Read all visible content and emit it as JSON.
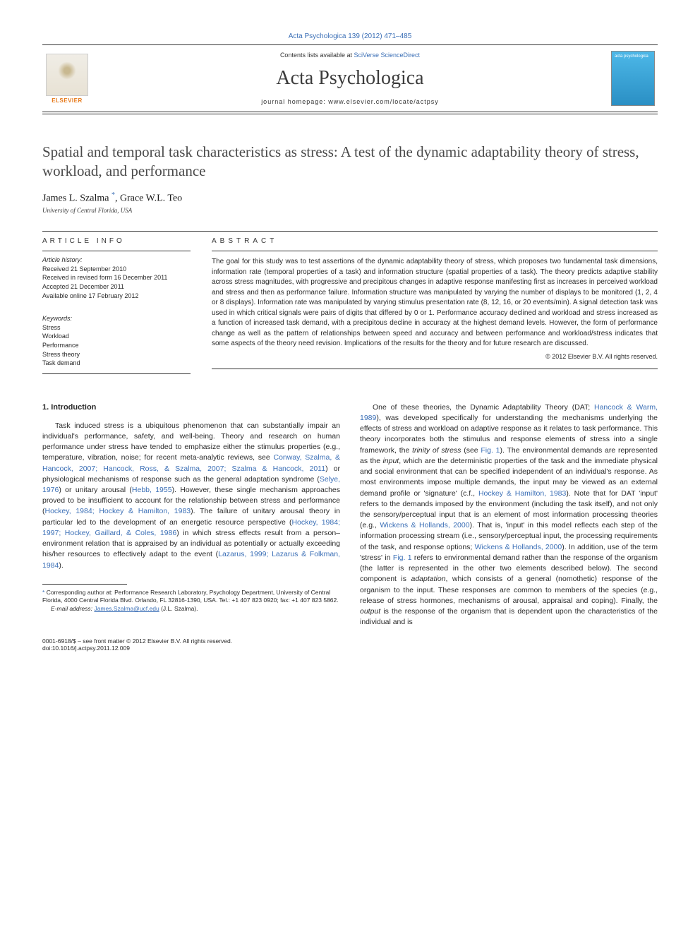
{
  "colors": {
    "link": "#3b6fb6",
    "text": "#2a2a2a",
    "title_gray": "#494949",
    "elsevier_orange": "#e67817",
    "cover_bg_top": "#4db8e8",
    "cover_bg_bottom": "#2a8fc4",
    "rule": "#333333"
  },
  "typography": {
    "body_font": "Arial, sans-serif",
    "serif_font": "Times New Roman, serif",
    "article_title_size_pt": 21,
    "journal_title_size_pt": 28,
    "body_size_pt": 10.5,
    "abstract_size_pt": 10,
    "info_size_pt": 9,
    "footnote_size_pt": 8.5
  },
  "header": {
    "journal_ref": "Acta Psychologica 139 (2012) 471–485",
    "contents_prefix": "Contents lists available at ",
    "contents_link": "SciVerse ScienceDirect",
    "journal_title": "Acta Psychologica",
    "homepage_label": "journal homepage: www.elsevier.com/locate/actpsy",
    "publisher_name": "ELSEVIER",
    "cover_text": "acta\npsychologica"
  },
  "article": {
    "title": "Spatial and temporal task characteristics as stress: A test of the dynamic adaptability theory of stress, workload, and performance",
    "authors_html": "James L. Szalma <sup class=\"corr-star\">*</sup>, Grace W.L. Teo",
    "affiliation": "University of Central Florida, USA"
  },
  "article_info": {
    "label": "ARTICLE INFO",
    "history_label": "Article history:",
    "history": [
      "Received 21 September 2010",
      "Received in revised form 16 December 2011",
      "Accepted 21 December 2011",
      "Available online 17 February 2012"
    ],
    "keywords_label": "Keywords:",
    "keywords": [
      "Stress",
      "Workload",
      "Performance",
      "Stress theory",
      "Task demand"
    ]
  },
  "abstract": {
    "label": "ABSTRACT",
    "text": "The goal for this study was to test assertions of the dynamic adaptability theory of stress, which proposes two fundamental task dimensions, information rate (temporal properties of a task) and information structure (spatial properties of a task). The theory predicts adaptive stability across stress magnitudes, with progressive and precipitous changes in adaptive response manifesting first as increases in perceived workload and stress and then as performance failure. Information structure was manipulated by varying the number of displays to be monitored (1, 2, 4 or 8 displays). Information rate was manipulated by varying stimulus presentation rate (8, 12, 16, or 20 events/min). A signal detection task was used in which critical signals were pairs of digits that differed by 0 or 1. Performance accuracy declined and workload and stress increased as a function of increased task demand, with a precipitous decline in accuracy at the highest demand levels. However, the form of performance change as well as the pattern of relationships between speed and accuracy and between performance and workload/stress indicates that some aspects of the theory need revision. Implications of the results for the theory and for future research are discussed.",
    "copyright": "© 2012 Elsevier B.V. All rights reserved."
  },
  "body": {
    "intro_heading": "1. Introduction",
    "col1_para": "Task induced stress is a ubiquitous phenomenon that can substantially impair an individual's performance, safety, and well-being. Theory and research on human performance under stress have tended to emphasize either the stimulus properties (e.g., temperature, vibration, noise; for recent meta-analytic reviews, see <span class=\"ref-link\">Conway, Szalma, & Hancock, 2007; Hancock, Ross, & Szalma, 2007; Szalma & Hancock, 2011</span>) or physiological mechanisms of response such as the general adaptation syndrome (<span class=\"ref-link\">Selye, 1976</span>) or unitary arousal (<span class=\"ref-link\">Hebb, 1955</span>). However, these single mechanism approaches proved to be insufficient to account for the relationship between stress and performance (<span class=\"ref-link\">Hockey, 1984; Hockey & Hamilton, 1983</span>). The failure of unitary arousal theory in particular led to the development of an energetic resource perspective (<span class=\"ref-link\">Hockey, 1984; 1997; Hockey, Gaillard, & Coles, 1986</span>) in which stress effects result from a person–environment relation that is appraised by an individual as potentially or actually exceeding his/her resources to effectively adapt to the event (<span class=\"ref-link\">Lazarus, 1999; Lazarus & Folkman, 1984</span>).",
    "col2_para": "One of these theories, the Dynamic Adaptability Theory (DAT; <span class=\"ref-link\">Hancock & Warm, 1989</span>), was developed specifically for understanding the mechanisms underlying the effects of stress and workload on adaptive response as it relates to task performance. This theory incorporates both the stimulus and response elements of stress into a single framework, the <i>trinity of stress</i> (see <span class=\"ref-link\">Fig. 1</span>). The environmental demands are represented as the <i>input</i>, which are the deterministic properties of the task and the immediate physical and social environment that can be specified independent of an individual's response. As most environments impose multiple demands, the input may be viewed as an external demand profile or 'signature' (c.f., <span class=\"ref-link\">Hockey & Hamilton, 1983</span>). Note that for DAT 'input' refers to the demands imposed by the environment (including the task itself), and not only the sensory/perceptual input that is an element of most information processing theories (e.g., <span class=\"ref-link\">Wickens & Hollands, 2000</span>). That is, 'input' in this model reflects each step of the information processing stream (i.e., sensory/perceptual input, the processing requirements of the task, and response options; <span class=\"ref-link\">Wickens & Hollands, 2000</span>). In addition, use of the term 'stress' in <span class=\"ref-link\">Fig. 1</span> refers to environmental demand rather than the response of the organism (the latter is represented in the other two elements described below). The second component is <i>adaptation</i>, which consists of a general (nomothetic) response of the organism to the input. These responses are common to members of the species (e.g., release of stress hormones, mechanisms of arousal, appraisal and coping). Finally, the <i>output</i> is the response of the organism that is dependent upon the characteristics of the individual and is"
  },
  "footnote": {
    "corr": "Corresponding author at: Performance Research Laboratory, Psychology Department, University of Central Florida, 4000 Central Florida Blvd. Orlando, FL 32816-1390, USA. Tel.: +1 407 823 0920; fax: +1 407 823 5862.",
    "email_label": "E-mail address:",
    "email": "James.Szalma@ucf.edu",
    "email_attr": "(J.L. Szalma)."
  },
  "footer": {
    "left1": "0001-6918/$ – see front matter © 2012 Elsevier B.V. All rights reserved.",
    "left2": "doi:10.1016/j.actpsy.2011.12.009"
  }
}
